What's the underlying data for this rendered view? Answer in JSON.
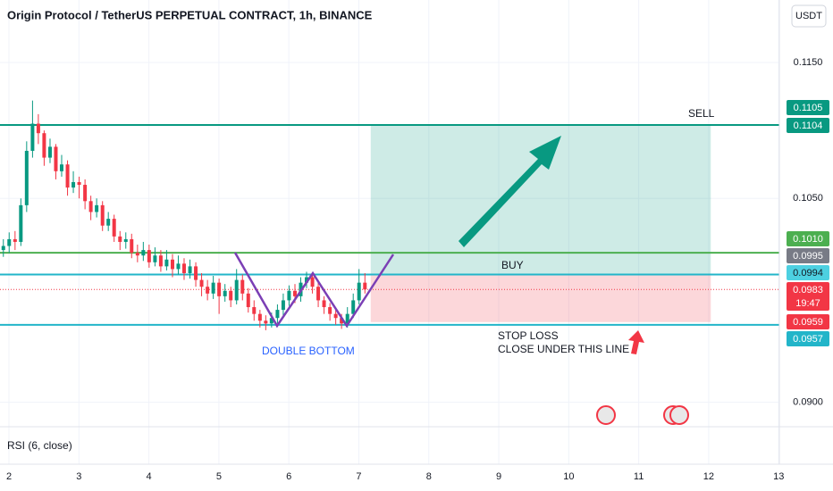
{
  "chart_data": {
    "type": "candlestick",
    "title": "Origin Protocol / TetherUS PERPETUAL CONTRACT, 1h, BINANCE",
    "currency": "USDT",
    "indicator": "RSI (6, close)",
    "x": [
      1.92,
      2.003,
      2.087,
      2.17,
      2.253,
      2.337,
      2.42,
      2.503,
      2.587,
      2.67,
      2.753,
      2.837,
      2.92,
      3.003,
      3.087,
      3.17,
      3.253,
      3.337,
      3.42,
      3.503,
      3.587,
      3.67,
      3.753,
      3.837,
      3.92,
      4.003,
      4.087,
      4.17,
      4.253,
      4.337,
      4.42,
      4.503,
      4.587,
      4.67,
      4.753,
      4.837,
      4.92,
      5.003,
      5.087,
      5.17,
      5.253,
      5.337,
      5.42,
      5.503,
      5.587,
      5.67,
      5.753,
      5.837,
      5.92,
      6.003,
      6.087,
      6.17,
      6.253,
      6.337,
      6.42,
      6.503,
      6.587,
      6.67,
      6.753,
      6.837,
      6.92,
      7.003,
      7.087
    ],
    "open": [
      0.1012,
      0.1015,
      0.102,
      0.1018,
      0.1045,
      0.1085,
      0.1105,
      0.1098,
      0.108,
      0.1088,
      0.107,
      0.1075,
      0.1058,
      0.1062,
      0.106,
      0.1048,
      0.104,
      0.1045,
      0.103,
      0.1035,
      0.1022,
      0.1018,
      0.102,
      0.101,
      0.1008,
      0.1012,
      0.1003,
      0.1008,
      0.1,
      0.1005,
      0.0998,
      0.1002,
      0.0995,
      0.1,
      0.099,
      0.0985,
      0.098,
      0.0988,
      0.0978,
      0.0982,
      0.0975,
      0.099,
      0.098,
      0.097,
      0.0965,
      0.096,
      0.0958,
      0.0962,
      0.0968,
      0.0975,
      0.0982,
      0.0978,
      0.0988,
      0.0992,
      0.0985,
      0.0975,
      0.097,
      0.0965,
      0.0962,
      0.0958,
      0.0965,
      0.0975,
      0.0988
    ],
    "high": [
      0.102,
      0.1025,
      0.1026,
      0.105,
      0.1092,
      0.1122,
      0.1112,
      0.11,
      0.1094,
      0.109,
      0.1082,
      0.1078,
      0.107,
      0.1066,
      0.1064,
      0.1052,
      0.105,
      0.1048,
      0.104,
      0.1038,
      0.1026,
      0.1025,
      0.1024,
      0.1016,
      0.1018,
      0.1016,
      0.1014,
      0.1012,
      0.1012,
      0.1009,
      0.1008,
      0.1006,
      0.1005,
      0.1003,
      0.0995,
      0.099,
      0.0993,
      0.0991,
      0.0987,
      0.0985,
      0.0998,
      0.0994,
      0.0984,
      0.0975,
      0.0968,
      0.0964,
      0.0966,
      0.0972,
      0.098,
      0.0986,
      0.0987,
      0.0992,
      0.0996,
      0.0995,
      0.0988,
      0.0978,
      0.0973,
      0.0968,
      0.0965,
      0.097,
      0.098,
      0.0998,
      0.0995
    ],
    "low": [
      0.1007,
      0.101,
      0.1012,
      0.1015,
      0.104,
      0.108,
      0.109,
      0.1074,
      0.1076,
      0.1064,
      0.1066,
      0.1052,
      0.1054,
      0.105,
      0.1042,
      0.1034,
      0.1036,
      0.1026,
      0.1026,
      0.1018,
      0.1012,
      0.1013,
      0.1006,
      0.1003,
      0.1004,
      0.0999,
      0.1,
      0.0996,
      0.0997,
      0.0992,
      0.0994,
      0.099,
      0.0991,
      0.0985,
      0.0978,
      0.0975,
      0.0976,
      0.0965,
      0.0974,
      0.097,
      0.0972,
      0.0975,
      0.0966,
      0.096,
      0.0955,
      0.0953,
      0.0955,
      0.0958,
      0.0964,
      0.0971,
      0.0973,
      0.0974,
      0.0984,
      0.098,
      0.097,
      0.0965,
      0.096,
      0.0957,
      0.0954,
      0.0955,
      0.0962,
      0.0972,
      0.098
    ],
    "close": [
      0.1015,
      0.102,
      0.1018,
      0.1045,
      0.1085,
      0.1105,
      0.1098,
      0.108,
      0.1088,
      0.107,
      0.1075,
      0.1058,
      0.1062,
      0.106,
      0.1048,
      0.104,
      0.1045,
      0.103,
      0.1035,
      0.1022,
      0.1018,
      0.102,
      0.101,
      0.1008,
      0.1012,
      0.1003,
      0.1008,
      0.1,
      0.1005,
      0.0998,
      0.1002,
      0.0995,
      0.1,
      0.099,
      0.0985,
      0.098,
      0.0988,
      0.0978,
      0.0982,
      0.0975,
      0.099,
      0.098,
      0.097,
      0.0965,
      0.096,
      0.0958,
      0.0962,
      0.0968,
      0.0975,
      0.0982,
      0.0978,
      0.0988,
      0.0992,
      0.0985,
      0.0975,
      0.097,
      0.0965,
      0.0962,
      0.0958,
      0.0965,
      0.0975,
      0.0988,
      0.0983
    ],
    "up_color": "#089981",
    "down_color": "#f23645",
    "xlim": [
      1.872,
      13.01
    ],
    "xticks": [
      2,
      3,
      4,
      5,
      6,
      7,
      8,
      9,
      10,
      11,
      12,
      13
    ],
    "ylim": [
      0.0882,
      0.1196
    ],
    "yticks": [
      {
        "value": 0.115,
        "label": "0.1150"
      },
      {
        "value": 0.105,
        "label": "0.1050"
      },
      {
        "value": 0.09,
        "label": "0.0900"
      }
    ],
    "grid": true,
    "levels": [
      {
        "value": 0.1104,
        "color": "#089981"
      },
      {
        "value": 0.101,
        "color": "#4caf50"
      },
      {
        "value": 0.0994,
        "color": "#22b5c9"
      },
      {
        "value": 0.0983,
        "color": "#f23645",
        "style": "dotted"
      },
      {
        "value": 0.0957,
        "color": "#22b5c9"
      }
    ],
    "position": {
      "x": [
        7.17,
        12.03
      ],
      "target": 0.1104,
      "entry": 0.0994,
      "stop": 0.0959
    },
    "price_labels": [
      "0.1105",
      "0.1104",
      "0.1010",
      "0.0995",
      "0.0994",
      "0.0983",
      "0.0959",
      "0.0957"
    ],
    "countdown": "19:47",
    "annotations": [
      "SELL",
      "BUY",
      "STOP LOSS",
      "CLOSE UNDER THIS LINE",
      "DOUBLE BOTTOM"
    ]
  }
}
